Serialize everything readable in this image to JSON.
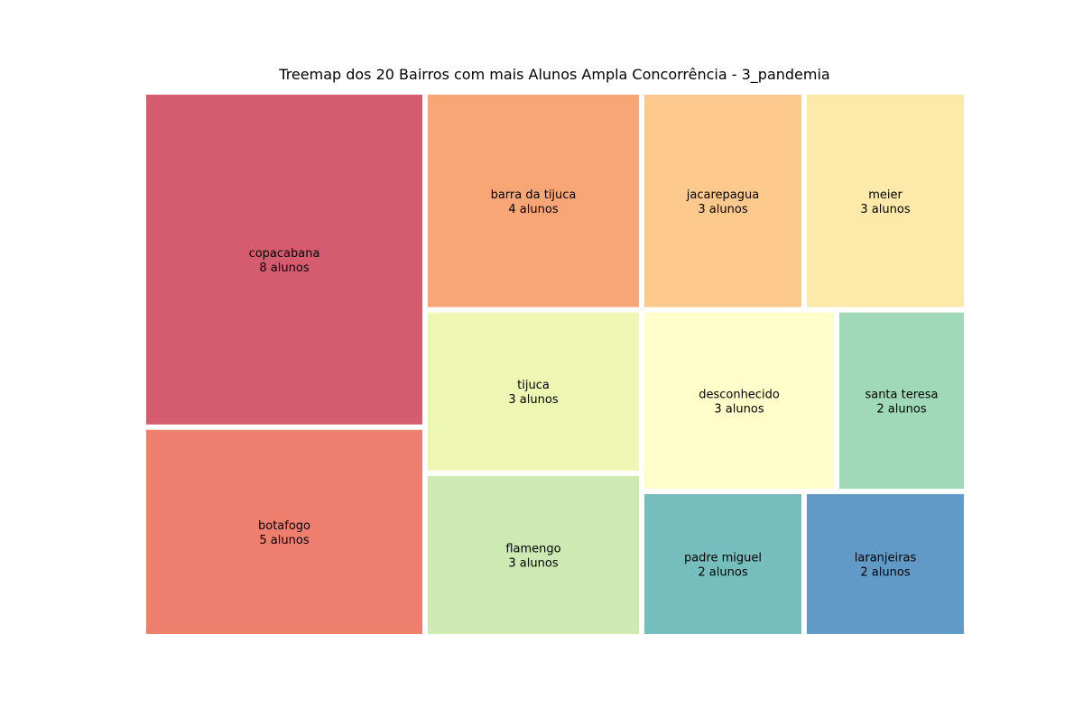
{
  "chart_data": {
    "type": "treemap",
    "title": "Treemap dos 20 Bairros com mais Alunos Ampla Concorrência - 3_pandemia",
    "value_suffix": "alunos",
    "items": [
      {
        "name": "copacabana",
        "value": 8,
        "label_value": "8 alunos",
        "color": "#d55c6f"
      },
      {
        "name": "botafogo",
        "value": 5,
        "label_value": "5 alunos",
        "color": "#ee7f6e"
      },
      {
        "name": "barra da tijuca",
        "value": 4,
        "label_value": "4 alunos",
        "color": "#f9a677"
      },
      {
        "name": "jacarepagua",
        "value": 3,
        "label_value": "3 alunos",
        "color": "#fdc98d"
      },
      {
        "name": "meier",
        "value": 3,
        "label_value": "3 alunos",
        "color": "#fde9a9"
      },
      {
        "name": "tijuca",
        "value": 3,
        "label_value": "3 alunos",
        "color": "#edf7b3"
      },
      {
        "name": "flamengo",
        "value": 3,
        "label_value": "3 alunos",
        "color": "#cdeab3"
      },
      {
        "name": "desconhecido",
        "value": 3,
        "label_value": "3 alunos",
        "color": "#fffdca"
      },
      {
        "name": "santa teresa",
        "value": 2,
        "label_value": "2 alunos",
        "color": "#9fd9b8"
      },
      {
        "name": "padre miguel",
        "value": 2,
        "label_value": "2 alunos",
        "color": "#76bebd"
      },
      {
        "name": "laranjeiras",
        "value": 2,
        "label_value": "2 alunos",
        "color": "#6199c7"
      }
    ],
    "axes": "off",
    "grid": false,
    "legend": "none"
  }
}
